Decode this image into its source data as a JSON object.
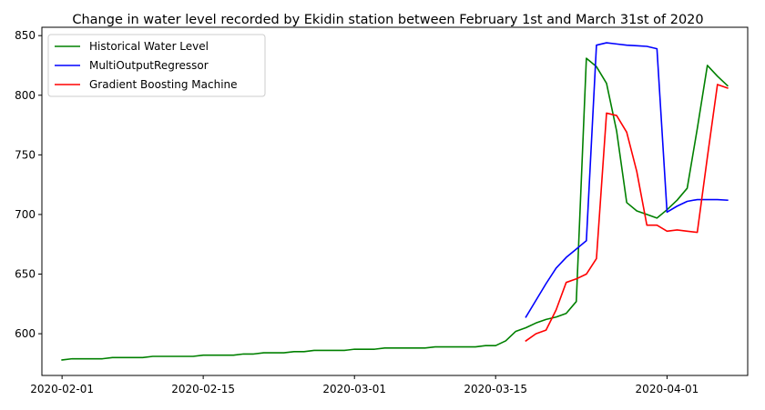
{
  "chart_data": {
    "type": "line",
    "title": "Change in water level recorded by Ekidin station between February 1st and March 31st of 2020",
    "xlabel": "",
    "ylabel": "",
    "x_range": [
      "2020-01-30",
      "2020-04-09"
    ],
    "ylim": [
      565,
      857
    ],
    "x_ticks": [
      {
        "date": "2020-02-01",
        "label": "2020-02-01"
      },
      {
        "date": "2020-02-15",
        "label": "2020-02-15"
      },
      {
        "date": "2020-03-01",
        "label": "2020-03-01"
      },
      {
        "date": "2020-03-15",
        "label": "2020-03-15"
      },
      {
        "date": "2020-04-01",
        "label": "2020-04-01"
      }
    ],
    "y_ticks": [
      600,
      650,
      700,
      750,
      800,
      850
    ],
    "grid": false,
    "legend": {
      "position": "top-left"
    },
    "series": [
      {
        "name": "Historical Water Level",
        "color": "#008000",
        "points": [
          [
            "2020-02-01",
            578
          ],
          [
            "2020-02-02",
            579
          ],
          [
            "2020-02-03",
            579
          ],
          [
            "2020-02-04",
            579
          ],
          [
            "2020-02-05",
            579
          ],
          [
            "2020-02-06",
            580
          ],
          [
            "2020-02-07",
            580
          ],
          [
            "2020-02-08",
            580
          ],
          [
            "2020-02-09",
            580
          ],
          [
            "2020-02-10",
            581
          ],
          [
            "2020-02-11",
            581
          ],
          [
            "2020-02-12",
            581
          ],
          [
            "2020-02-13",
            581
          ],
          [
            "2020-02-14",
            581
          ],
          [
            "2020-02-15",
            582
          ],
          [
            "2020-02-16",
            582
          ],
          [
            "2020-02-17",
            582
          ],
          [
            "2020-02-18",
            582
          ],
          [
            "2020-02-19",
            583
          ],
          [
            "2020-02-20",
            583
          ],
          [
            "2020-02-21",
            584
          ],
          [
            "2020-02-22",
            584
          ],
          [
            "2020-02-23",
            584
          ],
          [
            "2020-02-24",
            585
          ],
          [
            "2020-02-25",
            585
          ],
          [
            "2020-02-26",
            586
          ],
          [
            "2020-02-27",
            586
          ],
          [
            "2020-02-28",
            586
          ],
          [
            "2020-02-29",
            586
          ],
          [
            "2020-03-01",
            587
          ],
          [
            "2020-03-02",
            587
          ],
          [
            "2020-03-03",
            587
          ],
          [
            "2020-03-04",
            588
          ],
          [
            "2020-03-05",
            588
          ],
          [
            "2020-03-06",
            588
          ],
          [
            "2020-03-07",
            588
          ],
          [
            "2020-03-08",
            588
          ],
          [
            "2020-03-09",
            589
          ],
          [
            "2020-03-10",
            589
          ],
          [
            "2020-03-11",
            589
          ],
          [
            "2020-03-12",
            589
          ],
          [
            "2020-03-13",
            589
          ],
          [
            "2020-03-14",
            590
          ],
          [
            "2020-03-15",
            590
          ],
          [
            "2020-03-16",
            594
          ],
          [
            "2020-03-17",
            602
          ],
          [
            "2020-03-18",
            605
          ],
          [
            "2020-03-19",
            609
          ],
          [
            "2020-03-20",
            612
          ],
          [
            "2020-03-21",
            614
          ],
          [
            "2020-03-22",
            617
          ],
          [
            "2020-03-23",
            627
          ],
          [
            "2020-03-24",
            831
          ],
          [
            "2020-03-25",
            824
          ],
          [
            "2020-03-26",
            810
          ],
          [
            "2020-03-27",
            770
          ],
          [
            "2020-03-28",
            710
          ],
          [
            "2020-03-29",
            703
          ],
          [
            "2020-03-30",
            700
          ],
          [
            "2020-03-31",
            697
          ],
          [
            "2020-04-01",
            704
          ],
          [
            "2020-04-02",
            712
          ],
          [
            "2020-04-03",
            722
          ],
          [
            "2020-04-04",
            772
          ],
          [
            "2020-04-05",
            825
          ],
          [
            "2020-04-06",
            816
          ],
          [
            "2020-04-07",
            808
          ]
        ]
      },
      {
        "name": "MultiOutputRegressor",
        "color": "#0000ff",
        "points": [
          [
            "2020-03-18",
            614
          ],
          [
            "2020-03-19",
            628
          ],
          [
            "2020-03-20",
            642
          ],
          [
            "2020-03-21",
            655
          ],
          [
            "2020-03-22",
            664
          ],
          [
            "2020-03-23",
            671
          ],
          [
            "2020-03-24",
            678
          ],
          [
            "2020-03-25",
            842
          ],
          [
            "2020-03-26",
            844
          ],
          [
            "2020-03-27",
            843
          ],
          [
            "2020-03-28",
            842
          ],
          [
            "2020-03-29",
            841.5
          ],
          [
            "2020-03-30",
            841
          ],
          [
            "2020-03-31",
            839
          ],
          [
            "2020-04-01",
            702
          ],
          [
            "2020-04-02",
            707
          ],
          [
            "2020-04-03",
            711
          ],
          [
            "2020-04-04",
            712.5
          ],
          [
            "2020-04-05",
            712.5
          ],
          [
            "2020-04-06",
            712.5
          ],
          [
            "2020-04-07",
            712
          ]
        ]
      },
      {
        "name": "Gradient Boosting Machine",
        "color": "#ff0000",
        "points": [
          [
            "2020-03-18",
            594
          ],
          [
            "2020-03-19",
            600
          ],
          [
            "2020-03-20",
            603
          ],
          [
            "2020-03-21",
            620
          ],
          [
            "2020-03-22",
            643
          ],
          [
            "2020-03-23",
            646
          ],
          [
            "2020-03-24",
            650
          ],
          [
            "2020-03-25",
            663
          ],
          [
            "2020-03-26",
            785
          ],
          [
            "2020-03-27",
            783
          ],
          [
            "2020-03-28",
            769
          ],
          [
            "2020-03-29",
            736
          ],
          [
            "2020-03-30",
            691
          ],
          [
            "2020-03-31",
            691
          ],
          [
            "2020-04-01",
            686
          ],
          [
            "2020-04-02",
            687
          ],
          [
            "2020-04-03",
            686
          ],
          [
            "2020-04-04",
            685
          ],
          [
            "2020-04-05",
            748
          ],
          [
            "2020-04-06",
            809
          ],
          [
            "2020-04-07",
            806
          ]
        ]
      }
    ]
  }
}
